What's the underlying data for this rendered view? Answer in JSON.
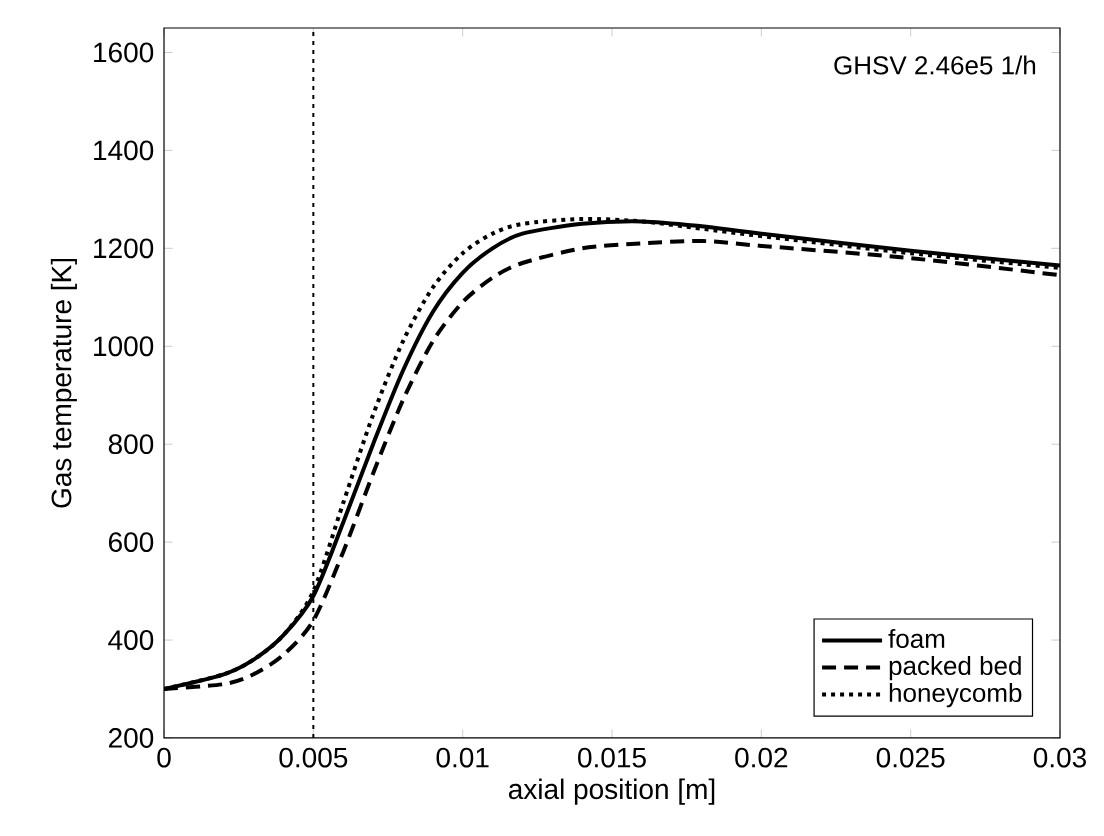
{
  "chart_data": {
    "type": "line",
    "xlabel": "axial position [m]",
    "ylabel": "Gas temperature [K]",
    "annotations": [
      "GHSV 2.46e5 1/h"
    ],
    "xlim": [
      0,
      0.03
    ],
    "ylim": [
      200,
      1650
    ],
    "xticks": [
      0,
      0.005,
      0.01,
      0.015,
      0.02,
      0.025,
      0.03
    ],
    "yticks": [
      200,
      400,
      600,
      800,
      1000,
      1200,
      1400,
      1600
    ],
    "grid": false,
    "legend": "bottom right",
    "marker": "none",
    "ref_lines": [
      {
        "axis": "x",
        "value": 0.005,
        "color": "#000000",
        "line_style": "dotted"
      }
    ],
    "x": [
      0,
      0.002,
      0.003,
      0.004,
      0.005,
      0.006,
      0.007,
      0.008,
      0.009,
      0.01,
      0.011,
      0.012,
      0.014,
      0.016,
      0.018,
      0.02,
      0.025,
      0.03
    ],
    "series": [
      {
        "name": "foam",
        "color": "#000000",
        "line_style": "solid",
        "values": [
          300,
          330,
          360,
          410,
          490,
          640,
          800,
          950,
          1070,
          1150,
          1200,
          1230,
          1250,
          1255,
          1245,
          1230,
          1195,
          1165
        ]
      },
      {
        "name": "packed bed",
        "color": "#000000",
        "line_style": "dashed",
        "values": [
          300,
          310,
          330,
          370,
          440,
          580,
          740,
          890,
          1010,
          1090,
          1140,
          1170,
          1200,
          1210,
          1215,
          1205,
          1180,
          1145
        ]
      },
      {
        "name": "honeycomb",
        "color": "#000000",
        "line_style": "dotted",
        "values": [
          300,
          330,
          360,
          410,
          500,
          680,
          860,
          1010,
          1120,
          1190,
          1230,
          1250,
          1260,
          1255,
          1240,
          1225,
          1190,
          1160
        ]
      }
    ]
  }
}
